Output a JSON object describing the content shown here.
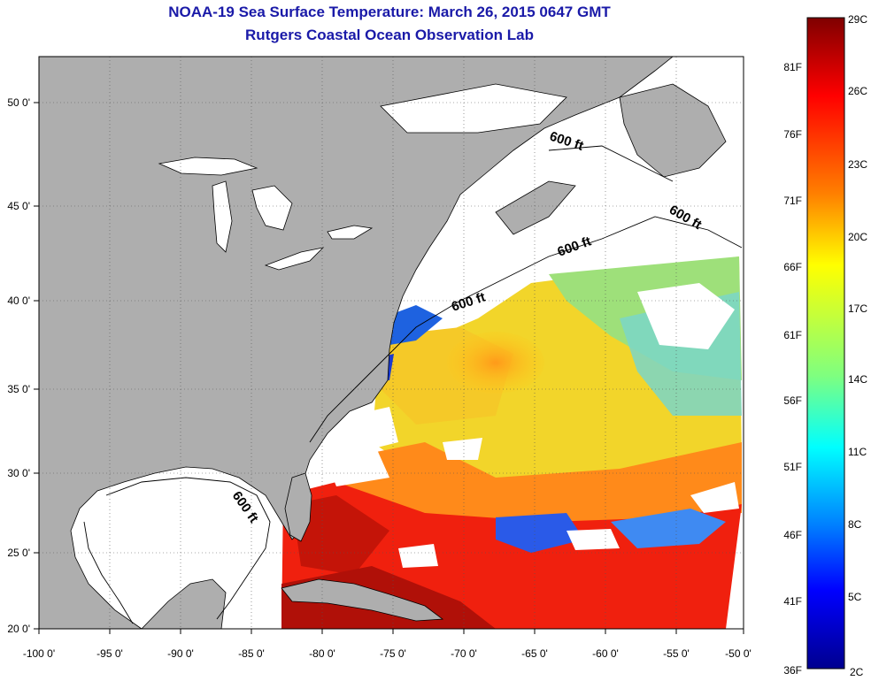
{
  "header": {
    "title": "NOAA-19 Sea Surface Temperature:  March 26, 2015 0647 GMT",
    "subtitle": "Rutgers Coastal Ocean Observation Lab"
  },
  "map": {
    "lon_range": [
      -100,
      -50
    ],
    "lat_range": [
      20,
      52.5
    ],
    "lon_ticks": [
      "-100 0'",
      "-95 0'",
      "-90 0'",
      "-85 0'",
      "-80 0'",
      "-75 0'",
      "-70 0'",
      "-65 0'",
      "-60 0'",
      "-55 0'",
      "-50 0'"
    ],
    "lat_ticks": [
      "20 0'",
      "25 0'",
      "30 0'",
      "35 0'",
      "40 0'",
      "45 0'",
      "50 0'"
    ],
    "depth_label": "600 ft",
    "land_color": "#aeaeae",
    "cloud_color": "#ffffff",
    "grid": "dotted"
  },
  "colorbar": {
    "celsius": [
      "29C",
      "26C",
      "23C",
      "20C",
      "17C",
      "14C",
      "11C",
      "8C",
      "5C",
      "2C"
    ],
    "fahrenheit": [
      "81F",
      "76F",
      "71F",
      "66F",
      "61F",
      "56F",
      "51F",
      "46F",
      "41F",
      "36F"
    ],
    "colors": [
      "#7f0000",
      "#ff0000",
      "#ff7f00",
      "#ffff00",
      "#7fff7f",
      "#00ffff",
      "#007fff",
      "#0000ff",
      "#00008f"
    ]
  }
}
